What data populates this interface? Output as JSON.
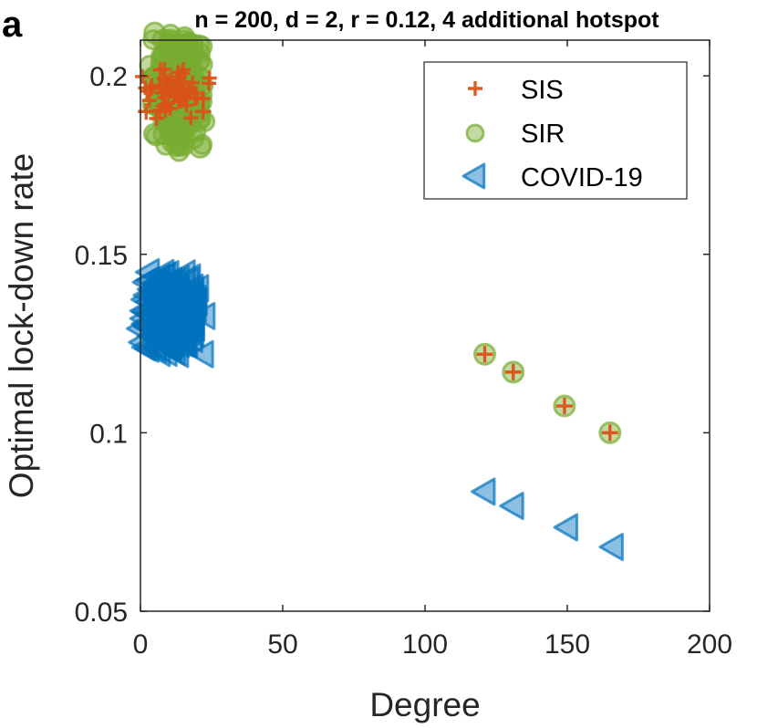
{
  "panel_label": "a",
  "colors": {
    "sis": "#D95319",
    "sir": "#77AC30",
    "covid": "#0072BD",
    "axis": "#262626"
  },
  "chart_data": {
    "type": "scatter",
    "title": "n = 200, d = 2, r = 0.12, 4 additional hotspot",
    "xlabel": "Degree",
    "ylabel": "Optimal lock-down rate",
    "xlim": [
      0,
      200
    ],
    "ylim": [
      0.05,
      0.21
    ],
    "xticks": [
      0,
      50,
      100,
      150,
      200
    ],
    "xtick_labels": [
      "0",
      "50",
      "100",
      "150",
      "200"
    ],
    "yticks": [
      0.05,
      0.1,
      0.15,
      0.2
    ],
    "ytick_labels": [
      "0.05",
      "0.1",
      "0.15",
      "0.2"
    ],
    "grid": false,
    "legend_position": "top-right",
    "series": [
      {
        "name": "SIS",
        "marker": "plus",
        "cluster": {
          "x_range": [
            1,
            24
          ],
          "y_range": [
            0.187,
            0.203
          ],
          "count": 60
        },
        "points": [
          [
            2,
            0.19
          ],
          [
            4,
            0.197
          ],
          [
            22,
            0.19
          ],
          [
            121,
            0.122
          ],
          [
            131,
            0.117
          ],
          [
            149,
            0.1075
          ],
          [
            165,
            0.1
          ]
        ]
      },
      {
        "name": "SIR",
        "marker": "circle",
        "cluster": {
          "x_range": [
            3,
            23
          ],
          "y_range": [
            0.18,
            0.212
          ],
          "count": 220
        },
        "points": [
          [
            5,
            0.212
          ],
          [
            8,
            0.21
          ],
          [
            21,
            0.18
          ],
          [
            121,
            0.122
          ],
          [
            131,
            0.117
          ],
          [
            149,
            0.1075
          ],
          [
            165,
            0.1
          ]
        ]
      },
      {
        "name": "COVID-19",
        "marker": "triangle-left",
        "cluster": {
          "x_range": [
            0,
            22
          ],
          "y_range": [
            0.122,
            0.145
          ],
          "count": 220
        },
        "points": [
          [
            3,
            0.145
          ],
          [
            1,
            0.132
          ],
          [
            22,
            0.122
          ],
          [
            121,
            0.0835
          ],
          [
            131,
            0.0795
          ],
          [
            150,
            0.0735
          ],
          [
            166,
            0.068
          ]
        ]
      }
    ]
  }
}
